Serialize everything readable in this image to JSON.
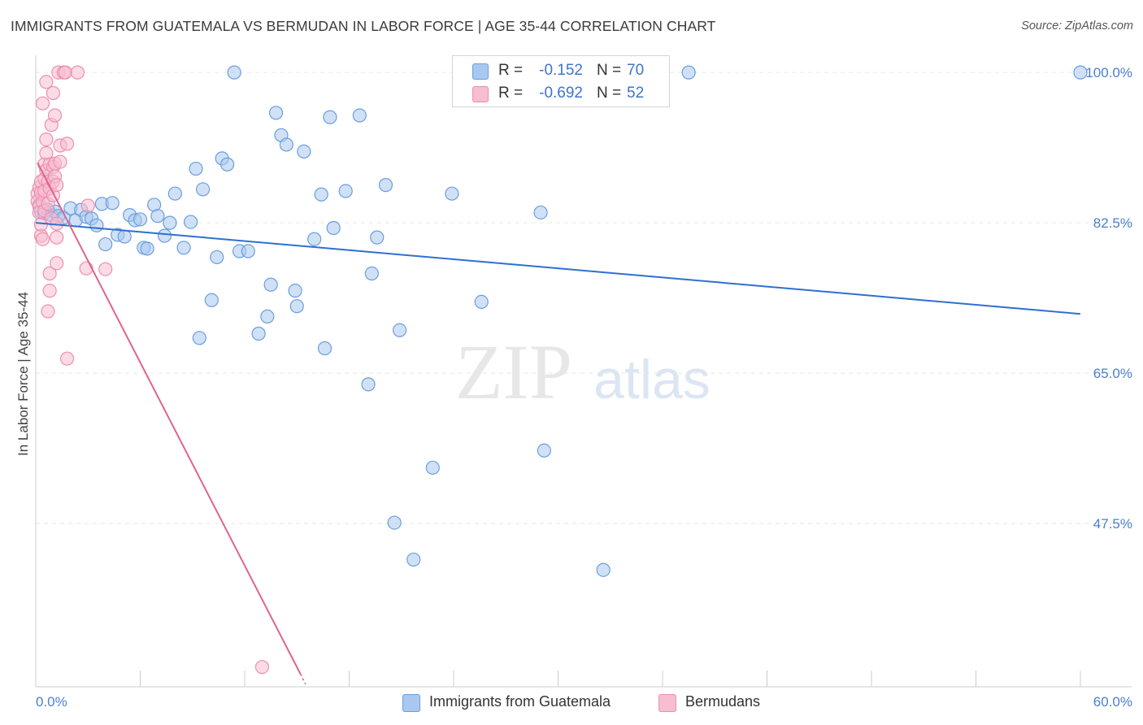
{
  "title": "IMMIGRANTS FROM GUATEMALA VS BERMUDAN IN LABOR FORCE | AGE 35-44 CORRELATION CHART",
  "source": "Source: ZipAtlas.com",
  "watermark": {
    "zip": "ZIP",
    "atlas": "atlas"
  },
  "colors": {
    "blue_fill": "#a9c8ef",
    "blue_stroke": "#6a9ee0",
    "blue_line": "#2f6fd0",
    "pink_fill": "#f7bdd0",
    "pink_stroke": "#ee8fb0",
    "pink_line": "#e0648e",
    "tick_text": "#4a7fd0",
    "grid": "#e6e6e6"
  },
  "legend": {
    "rows": [
      {
        "r_label": "R =",
        "r_value": "-0.152",
        "n_label": "N =",
        "n_value": "70"
      },
      {
        "r_label": "R =",
        "r_value": "-0.692",
        "n_label": "N =",
        "n_value": "52"
      }
    ]
  },
  "bottom_legend": {
    "series1": "Immigrants from Guatemala",
    "series2": "Bermudans"
  },
  "chart_data": {
    "type": "scatter",
    "title": "IMMIGRANTS FROM GUATEMALA VS BERMUDAN IN LABOR FORCE | AGE 35-44 CORRELATION CHART",
    "xlabel": "",
    "ylabel": "In Labor Force | Age 35-44",
    "xlim": [
      0,
      60
    ],
    "ylim": [
      28.5,
      102
    ],
    "x_tick_labels": [
      "0.0%",
      "60.0%"
    ],
    "y_ticks": [
      100,
      82.5,
      65,
      47.5
    ],
    "y_tick_labels": [
      "100.0%",
      "82.5%",
      "65.0%",
      "47.5%"
    ],
    "grid": true,
    "series": [
      {
        "name": "Immigrants from Guatemala",
        "r": -0.152,
        "n": 70,
        "trend": {
          "x": [
            0,
            60
          ],
          "y": [
            82.5,
            71.9
          ]
        },
        "points": [
          [
            0.2,
            84.6
          ],
          [
            0.3,
            83.8
          ],
          [
            0.5,
            83.6
          ],
          [
            0.7,
            84.0
          ],
          [
            0.9,
            83.4
          ],
          [
            1.1,
            83.8
          ],
          [
            1.3,
            83.3
          ],
          [
            1.6,
            83.1
          ],
          [
            2.0,
            84.2
          ],
          [
            2.3,
            82.8
          ],
          [
            2.6,
            84.0
          ],
          [
            2.9,
            83.2
          ],
          [
            3.2,
            83.0
          ],
          [
            3.5,
            82.2
          ],
          [
            3.8,
            84.7
          ],
          [
            4.0,
            80.0
          ],
          [
            4.4,
            84.8
          ],
          [
            4.7,
            81.1
          ],
          [
            5.1,
            80.9
          ],
          [
            5.4,
            83.4
          ],
          [
            5.7,
            82.8
          ],
          [
            6.0,
            82.9
          ],
          [
            6.2,
            79.6
          ],
          [
            6.4,
            79.5
          ],
          [
            6.8,
            84.6
          ],
          [
            7.0,
            83.3
          ],
          [
            7.4,
            81.0
          ],
          [
            7.7,
            82.5
          ],
          [
            8.0,
            85.9
          ],
          [
            8.5,
            79.6
          ],
          [
            8.9,
            82.6
          ],
          [
            9.2,
            88.8
          ],
          [
            9.4,
            69.1
          ],
          [
            9.6,
            86.4
          ],
          [
            10.1,
            73.5
          ],
          [
            10.4,
            78.5
          ],
          [
            10.7,
            90.0
          ],
          [
            11.0,
            89.3
          ],
          [
            11.4,
            100.0
          ],
          [
            11.7,
            79.2
          ],
          [
            12.2,
            79.2
          ],
          [
            12.8,
            69.6
          ],
          [
            13.3,
            71.6
          ],
          [
            13.5,
            75.3
          ],
          [
            13.8,
            95.3
          ],
          [
            14.1,
            92.7
          ],
          [
            14.4,
            91.6
          ],
          [
            14.9,
            74.6
          ],
          [
            15.0,
            72.8
          ],
          [
            15.4,
            90.8
          ],
          [
            16.0,
            80.6
          ],
          [
            16.4,
            85.8
          ],
          [
            16.6,
            67.9
          ],
          [
            16.9,
            94.8
          ],
          [
            17.1,
            81.9
          ],
          [
            17.8,
            86.2
          ],
          [
            18.6,
            95.0
          ],
          [
            19.1,
            63.7
          ],
          [
            19.3,
            76.6
          ],
          [
            19.6,
            80.8
          ],
          [
            20.1,
            86.9
          ],
          [
            20.6,
            47.6
          ],
          [
            20.9,
            70.0
          ],
          [
            21.7,
            43.3
          ],
          [
            22.8,
            54.0
          ],
          [
            23.9,
            85.9
          ],
          [
            25.6,
            73.3
          ],
          [
            29.0,
            83.7
          ],
          [
            29.2,
            56.0
          ],
          [
            32.6,
            42.1
          ],
          [
            37.5,
            100.0
          ],
          [
            60.0,
            100.0
          ]
        ]
      },
      {
        "name": "Bermudans",
        "r": -0.692,
        "n": 52,
        "trend": {
          "x": [
            0.1,
            15.2
          ],
          "y": [
            89.5,
            30.0
          ]
        },
        "trend_dashed": {
          "x": [
            15.2,
            15.5
          ],
          "y": [
            30.0,
            28.8
          ]
        },
        "points": [
          [
            0.1,
            85.9
          ],
          [
            0.1,
            85.0
          ],
          [
            0.2,
            86.6
          ],
          [
            0.2,
            84.4
          ],
          [
            0.2,
            83.7
          ],
          [
            0.3,
            87.3
          ],
          [
            0.3,
            86.0
          ],
          [
            0.3,
            81.0
          ],
          [
            0.3,
            82.3
          ],
          [
            0.4,
            84.9
          ],
          [
            0.4,
            80.6
          ],
          [
            0.4,
            96.4
          ],
          [
            0.5,
            89.3
          ],
          [
            0.5,
            87.6
          ],
          [
            0.5,
            86.2
          ],
          [
            0.5,
            83.9
          ],
          [
            0.6,
            88.6
          ],
          [
            0.6,
            90.6
          ],
          [
            0.6,
            92.2
          ],
          [
            0.6,
            98.9
          ],
          [
            0.7,
            72.2
          ],
          [
            0.7,
            87.3
          ],
          [
            0.7,
            84.7
          ],
          [
            0.8,
            86.5
          ],
          [
            0.8,
            89.3
          ],
          [
            0.8,
            76.6
          ],
          [
            0.8,
            74.6
          ],
          [
            0.9,
            83.0
          ],
          [
            0.9,
            93.9
          ],
          [
            1.0,
            85.7
          ],
          [
            1.0,
            89.0
          ],
          [
            1.0,
            87.3
          ],
          [
            1.0,
            97.6
          ],
          [
            1.1,
            95.0
          ],
          [
            1.1,
            89.4
          ],
          [
            1.1,
            87.9
          ],
          [
            1.2,
            86.9
          ],
          [
            1.2,
            82.4
          ],
          [
            1.2,
            77.8
          ],
          [
            1.2,
            80.8
          ],
          [
            1.3,
            100.0
          ],
          [
            1.4,
            89.6
          ],
          [
            1.4,
            91.5
          ],
          [
            1.6,
            100.0
          ],
          [
            1.7,
            100.0
          ],
          [
            1.8,
            91.7
          ],
          [
            1.8,
            66.7
          ],
          [
            2.4,
            100.0
          ],
          [
            2.9,
            77.2
          ],
          [
            3.0,
            84.5
          ],
          [
            4.0,
            77.1
          ],
          [
            13.0,
            30.8
          ]
        ]
      }
    ]
  }
}
